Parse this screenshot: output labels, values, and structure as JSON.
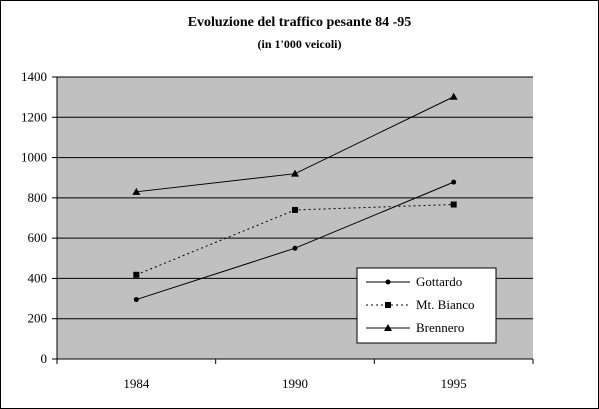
{
  "chart_data": {
    "type": "line",
    "title": "Evoluzione del traffico pesante 84 -95",
    "subtitle": "(in 1'000 veicoli)",
    "xlabel": "",
    "ylabel": "",
    "categories": [
      "1984",
      "1990",
      "1995"
    ],
    "ylim": [
      0,
      1400
    ],
    "yticks": [
      0,
      200,
      400,
      600,
      800,
      1000,
      1200,
      1400
    ],
    "grid": true,
    "legend_position": "bottom-right",
    "plot_background": "#c0c0c0",
    "series": [
      {
        "name": "Gottardo",
        "values": [
          295,
          550,
          878
        ],
        "line_style": "solid",
        "marker": "circle"
      },
      {
        "name": "Mt. Bianco",
        "values": [
          418,
          740,
          767
        ],
        "line_style": "dotted",
        "marker": "square"
      },
      {
        "name": "Brennero",
        "values": [
          830,
          920,
          1302
        ],
        "line_style": "solid",
        "marker": "triangle"
      }
    ]
  }
}
